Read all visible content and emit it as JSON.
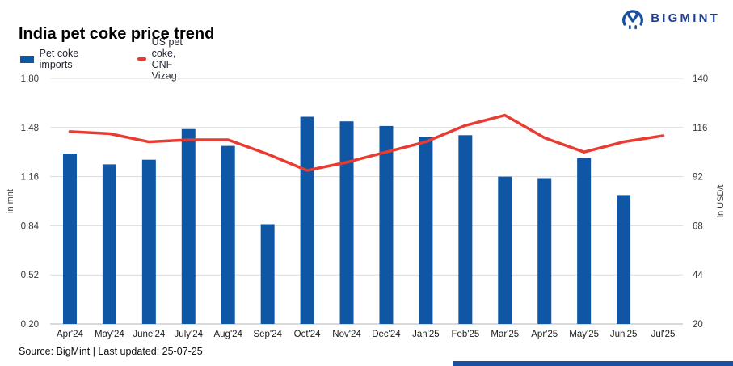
{
  "brand": {
    "name": "BIGMINT",
    "color": "#1b4fa0"
  },
  "header": {
    "title": "India pet coke price trend"
  },
  "legend": [
    {
      "label": "Pet coke imports",
      "type": "bar",
      "color": "#0f57a5"
    },
    {
      "label": "US pet coke, CNF Vizag",
      "type": "line",
      "color": "#e83b32"
    }
  ],
  "footer": {
    "source": "Source: BigMint | Last updated: 25-07-25"
  },
  "chart_data": {
    "type": "bar",
    "subtype": "bar+line dual axis",
    "title": "India pet coke price trend",
    "categories": [
      "Apr'24",
      "May'24",
      "June'24",
      "July'24",
      "Aug'24",
      "Sep'24",
      "Oct'24",
      "Nov'24",
      "Dec'24",
      "Jan'25",
      "Feb'25",
      "Mar'25",
      "Apr'25",
      "May'25",
      "Jun'25",
      "Jul'25"
    ],
    "series": [
      {
        "name": "Pet coke imports",
        "type": "bar",
        "axis": "left",
        "unit": "mnt",
        "color": "#0f57a5",
        "values": [
          1.31,
          1.24,
          1.27,
          1.47,
          1.36,
          0.85,
          1.55,
          1.52,
          1.49,
          1.42,
          1.43,
          1.16,
          1.15,
          1.28,
          1.04,
          null
        ]
      },
      {
        "name": "US pet coke, CNF Vizag",
        "type": "line",
        "axis": "right",
        "unit": "USD/t",
        "color": "#e83b32",
        "values": [
          114,
          113,
          109,
          110,
          110,
          103,
          95,
          99,
          104,
          109,
          117,
          122,
          111,
          104,
          109,
          112
        ]
      }
    ],
    "left_axis": {
      "label": "in mnt",
      "ticks": [
        "1.80",
        "1.48",
        "1.16",
        "0.84",
        "0.52",
        "0.20"
      ],
      "range": [
        0.2,
        1.8
      ]
    },
    "right_axis": {
      "label": "in USD/t",
      "ticks": [
        "140",
        "116",
        "92",
        "68",
        "44",
        "20"
      ],
      "range": [
        20,
        140
      ]
    },
    "grid": true,
    "legend_position": "top-left"
  }
}
